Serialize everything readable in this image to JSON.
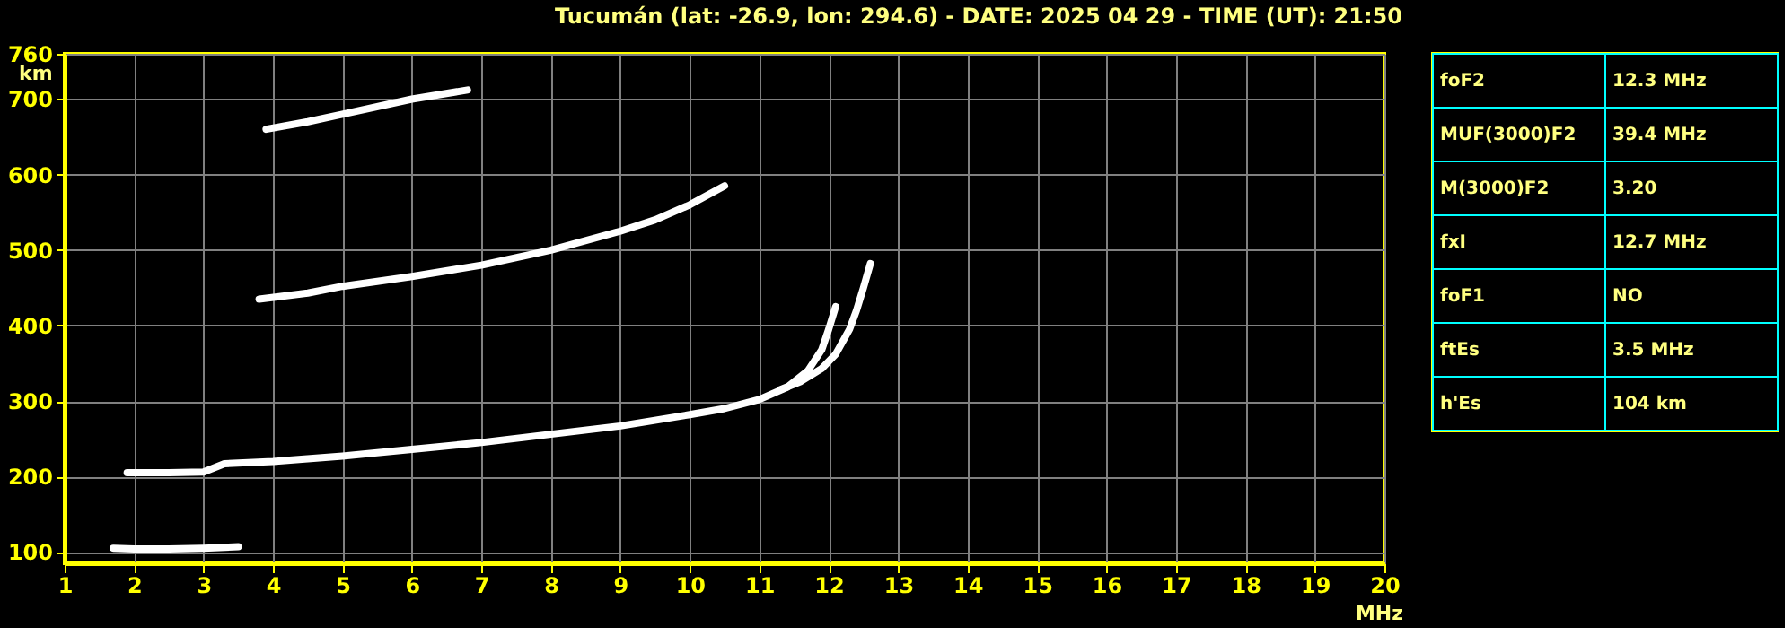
{
  "chart_data": [
    {
      "type": "line",
      "title": "Tucumán (lat: -26.9, lon: 294.6) - DATE: 2025 04 29 - TIME (UT): 21:50",
      "xlabel": "MHz",
      "ylabel": "km",
      "xlim": [
        1,
        20
      ],
      "xticks": [
        1,
        2,
        3,
        4,
        5,
        6,
        7,
        8,
        9,
        10,
        11,
        12,
        13,
        14,
        15,
        16,
        17,
        18,
        19,
        20
      ],
      "ylim": [
        85,
        760
      ],
      "yticks": [
        100,
        200,
        300,
        400,
        500,
        600,
        700,
        760
      ],
      "grid": true,
      "marker": "none",
      "line_style": "solid",
      "series": [
        {
          "color": "#ffffff",
          "x": [
            1.7,
            2.0,
            2.5,
            3.0,
            3.5
          ],
          "values": [
            105,
            104,
            104,
            105,
            107
          ]
        },
        {
          "color": "#ffffff",
          "x": [
            1.9,
            2.5,
            3.0,
            3.3,
            4.0,
            5.0,
            6.0,
            7.0,
            8.0,
            9.0,
            10.0,
            10.5,
            11.0,
            11.4,
            11.7,
            11.9,
            12.0,
            12.1
          ],
          "values": [
            205,
            205,
            206,
            217,
            220,
            227,
            236,
            245,
            256,
            267,
            282,
            290,
            302,
            318,
            340,
            368,
            395,
            425
          ]
        },
        {
          "color": "#ffffff",
          "x": [
            11.3,
            11.6,
            11.9,
            12.1,
            12.3,
            12.4,
            12.5,
            12.6
          ],
          "values": [
            315,
            326,
            343,
            362,
            395,
            420,
            450,
            482
          ]
        },
        {
          "color": "#ffffff",
          "x": [
            3.8,
            4.5,
            5.0,
            6.0,
            7.0,
            8.0,
            9.0,
            9.5,
            10.0,
            10.5
          ],
          "values": [
            435,
            443,
            452,
            465,
            480,
            500,
            525,
            540,
            560,
            585
          ]
        },
        {
          "color": "#ffffff",
          "x": [
            3.9,
            4.5,
            5.0,
            6.0,
            6.8
          ],
          "values": [
            660,
            670,
            680,
            700,
            712
          ]
        }
      ]
    },
    {
      "type": "other",
      "annotations": [
        "foF2",
        "12.3 MHz",
        "MUF(3000)F2",
        "39.4 MHz",
        "M(3000)F2",
        "3.20",
        "fxI",
        "12.7 MHz",
        "foF1",
        "NO",
        "ftEs",
        "3.5 MHz",
        "h'Es",
        "104 km"
      ]
    }
  ]
}
